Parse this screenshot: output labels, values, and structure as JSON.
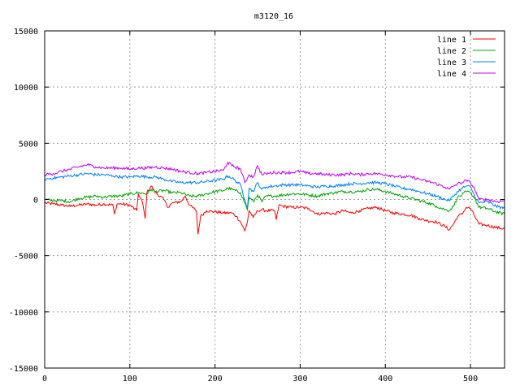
{
  "chart_data": {
    "type": "line",
    "title": "m3120_16",
    "xlabel": "",
    "ylabel": "",
    "xlim": [
      0,
      540
    ],
    "ylim": [
      -15000,
      15000
    ],
    "x_ticks": [
      0,
      100,
      200,
      300,
      400,
      500
    ],
    "y_ticks": [
      -15000,
      -10000,
      -5000,
      0,
      5000,
      10000,
      15000
    ],
    "grid": true,
    "legend_position": "top-right",
    "series": [
      {
        "name": "line 1",
        "color": "#ff0000",
        "points": [
          [
            0,
            -300
          ],
          [
            10,
            -400
          ],
          [
            20,
            -500
          ],
          [
            30,
            -600
          ],
          [
            40,
            -500
          ],
          [
            50,
            -400
          ],
          [
            60,
            -500
          ],
          [
            70,
            -400
          ],
          [
            80,
            -500
          ],
          [
            82,
            -1300
          ],
          [
            85,
            -400
          ],
          [
            90,
            -400
          ],
          [
            100,
            -500
          ],
          [
            108,
            -1000
          ],
          [
            110,
            500
          ],
          [
            115,
            -300
          ],
          [
            118,
            -1700
          ],
          [
            120,
            600
          ],
          [
            125,
            1200
          ],
          [
            130,
            600
          ],
          [
            140,
            0
          ],
          [
            145,
            -700
          ],
          [
            150,
            -300
          ],
          [
            160,
            -200
          ],
          [
            165,
            300
          ],
          [
            170,
            -500
          ],
          [
            178,
            -1000
          ],
          [
            180,
            -3100
          ],
          [
            183,
            -1500
          ],
          [
            190,
            -1000
          ],
          [
            200,
            -1100
          ],
          [
            210,
            -1200
          ],
          [
            220,
            -1200
          ],
          [
            225,
            -1500
          ],
          [
            230,
            -2000
          ],
          [
            235,
            -2800
          ],
          [
            238,
            -2000
          ],
          [
            240,
            -1000
          ],
          [
            245,
            -1600
          ],
          [
            250,
            -1000
          ],
          [
            255,
            -900
          ],
          [
            260,
            -1000
          ],
          [
            270,
            -1000
          ],
          [
            272,
            -1800
          ],
          [
            275,
            -500
          ],
          [
            280,
            -600
          ],
          [
            290,
            -700
          ],
          [
            300,
            -700
          ],
          [
            310,
            -800
          ],
          [
            320,
            -1300
          ],
          [
            330,
            -1200
          ],
          [
            340,
            -1300
          ],
          [
            350,
            -1000
          ],
          [
            360,
            -1200
          ],
          [
            370,
            -1000
          ],
          [
            380,
            -800
          ],
          [
            390,
            -700
          ],
          [
            400,
            -1000
          ],
          [
            410,
            -1200
          ],
          [
            420,
            -1300
          ],
          [
            430,
            -1400
          ],
          [
            440,
            -1700
          ],
          [
            450,
            -1900
          ],
          [
            460,
            -2000
          ],
          [
            470,
            -2400
          ],
          [
            475,
            -2700
          ],
          [
            480,
            -2200
          ],
          [
            485,
            -1500
          ],
          [
            490,
            -1300
          ],
          [
            495,
            -700
          ],
          [
            500,
            -800
          ],
          [
            505,
            -1500
          ],
          [
            510,
            -2200
          ],
          [
            520,
            -2300
          ],
          [
            530,
            -2500
          ],
          [
            540,
            -2600
          ]
        ]
      },
      {
        "name": "line 2",
        "color": "#00a000",
        "points": [
          [
            0,
            0
          ],
          [
            10,
            -100
          ],
          [
            20,
            -100
          ],
          [
            30,
            -200
          ],
          [
            40,
            100
          ],
          [
            50,
            200
          ],
          [
            60,
            300
          ],
          [
            70,
            200
          ],
          [
            80,
            300
          ],
          [
            90,
            300
          ],
          [
            100,
            500
          ],
          [
            110,
            600
          ],
          [
            120,
            500
          ],
          [
            125,
            900
          ],
          [
            130,
            700
          ],
          [
            140,
            800
          ],
          [
            150,
            600
          ],
          [
            160,
            600
          ],
          [
            170,
            300
          ],
          [
            180,
            300
          ],
          [
            190,
            500
          ],
          [
            200,
            700
          ],
          [
            210,
            800
          ],
          [
            215,
            1000
          ],
          [
            220,
            900
          ],
          [
            230,
            600
          ],
          [
            235,
            -300
          ],
          [
            238,
            -900
          ],
          [
            240,
            200
          ],
          [
            245,
            -200
          ],
          [
            250,
            400
          ],
          [
            255,
            -200
          ],
          [
            260,
            300
          ],
          [
            270,
            300
          ],
          [
            280,
            400
          ],
          [
            290,
            500
          ],
          [
            300,
            500
          ],
          [
            310,
            400
          ],
          [
            320,
            300
          ],
          [
            330,
            500
          ],
          [
            340,
            600
          ],
          [
            350,
            700
          ],
          [
            360,
            700
          ],
          [
            370,
            700
          ],
          [
            380,
            900
          ],
          [
            390,
            900
          ],
          [
            400,
            700
          ],
          [
            410,
            500
          ],
          [
            420,
            300
          ],
          [
            430,
            100
          ],
          [
            440,
            -100
          ],
          [
            450,
            -300
          ],
          [
            460,
            -600
          ],
          [
            470,
            -900
          ],
          [
            475,
            -1000
          ],
          [
            480,
            -600
          ],
          [
            485,
            200
          ],
          [
            490,
            400
          ],
          [
            495,
            700
          ],
          [
            500,
            600
          ],
          [
            505,
            100
          ],
          [
            510,
            -700
          ],
          [
            520,
            -800
          ],
          [
            530,
            -1100
          ],
          [
            540,
            -1300
          ]
        ]
      },
      {
        "name": "line 3",
        "color": "#0080ff",
        "points": [
          [
            0,
            1800
          ],
          [
            10,
            1900
          ],
          [
            20,
            2000
          ],
          [
            30,
            2100
          ],
          [
            40,
            2200
          ],
          [
            50,
            2300
          ],
          [
            60,
            2200
          ],
          [
            70,
            2200
          ],
          [
            80,
            2100
          ],
          [
            90,
            2000
          ],
          [
            100,
            2000
          ],
          [
            110,
            2100
          ],
          [
            120,
            2000
          ],
          [
            130,
            2000
          ],
          [
            140,
            1800
          ],
          [
            150,
            1600
          ],
          [
            160,
            1500
          ],
          [
            170,
            1500
          ],
          [
            180,
            1500
          ],
          [
            190,
            1600
          ],
          [
            200,
            1700
          ],
          [
            210,
            1800
          ],
          [
            215,
            2100
          ],
          [
            220,
            1900
          ],
          [
            230,
            1300
          ],
          [
            235,
            0
          ],
          [
            238,
            -700
          ],
          [
            240,
            1000
          ],
          [
            245,
            700
          ],
          [
            250,
            1500
          ],
          [
            255,
            900
          ],
          [
            260,
            1100
          ],
          [
            270,
            1200
          ],
          [
            280,
            1300
          ],
          [
            290,
            1300
          ],
          [
            300,
            1300
          ],
          [
            310,
            1200
          ],
          [
            320,
            1100
          ],
          [
            330,
            1200
          ],
          [
            340,
            1200
          ],
          [
            350,
            1300
          ],
          [
            360,
            1400
          ],
          [
            370,
            1400
          ],
          [
            380,
            1500
          ],
          [
            390,
            1500
          ],
          [
            400,
            1400
          ],
          [
            410,
            1200
          ],
          [
            420,
            1000
          ],
          [
            430,
            900
          ],
          [
            440,
            700
          ],
          [
            450,
            500
          ],
          [
            460,
            300
          ],
          [
            470,
            0
          ],
          [
            475,
            -100
          ],
          [
            480,
            300
          ],
          [
            485,
            700
          ],
          [
            490,
            1000
          ],
          [
            495,
            1200
          ],
          [
            500,
            1100
          ],
          [
            505,
            300
          ],
          [
            510,
            -300
          ],
          [
            520,
            -200
          ],
          [
            530,
            -600
          ],
          [
            540,
            -800
          ]
        ]
      },
      {
        "name": "line 4",
        "color": "#c000ff",
        "points": [
          [
            0,
            2200
          ],
          [
            10,
            2300
          ],
          [
            20,
            2500
          ],
          [
            30,
            2700
          ],
          [
            40,
            2900
          ],
          [
            50,
            3100
          ],
          [
            60,
            2900
          ],
          [
            70,
            2800
          ],
          [
            80,
            2800
          ],
          [
            90,
            2800
          ],
          [
            100,
            2700
          ],
          [
            110,
            2800
          ],
          [
            120,
            2800
          ],
          [
            130,
            2900
          ],
          [
            140,
            2800
          ],
          [
            150,
            2700
          ],
          [
            160,
            2500
          ],
          [
            170,
            2400
          ],
          [
            180,
            2300
          ],
          [
            190,
            2400
          ],
          [
            200,
            2500
          ],
          [
            210,
            2600
          ],
          [
            215,
            3300
          ],
          [
            220,
            3000
          ],
          [
            230,
            2700
          ],
          [
            235,
            1500
          ],
          [
            238,
            1900
          ],
          [
            240,
            2200
          ],
          [
            245,
            2000
          ],
          [
            250,
            3000
          ],
          [
            255,
            2200
          ],
          [
            260,
            2300
          ],
          [
            270,
            2400
          ],
          [
            280,
            2400
          ],
          [
            290,
            2400
          ],
          [
            300,
            2500
          ],
          [
            310,
            2300
          ],
          [
            320,
            2300
          ],
          [
            330,
            2200
          ],
          [
            340,
            2200
          ],
          [
            350,
            2200
          ],
          [
            360,
            2300
          ],
          [
            370,
            2200
          ],
          [
            380,
            2300
          ],
          [
            390,
            2300
          ],
          [
            400,
            2200
          ],
          [
            410,
            2100
          ],
          [
            420,
            2000
          ],
          [
            430,
            2000
          ],
          [
            440,
            1800
          ],
          [
            450,
            1600
          ],
          [
            460,
            1400
          ],
          [
            470,
            1100
          ],
          [
            475,
            900
          ],
          [
            480,
            1200
          ],
          [
            485,
            1400
          ],
          [
            490,
            1500
          ],
          [
            495,
            1700
          ],
          [
            500,
            1500
          ],
          [
            505,
            900
          ],
          [
            510,
            0
          ],
          [
            520,
            0
          ],
          [
            530,
            -200
          ],
          [
            540,
            -100
          ]
        ]
      }
    ]
  }
}
